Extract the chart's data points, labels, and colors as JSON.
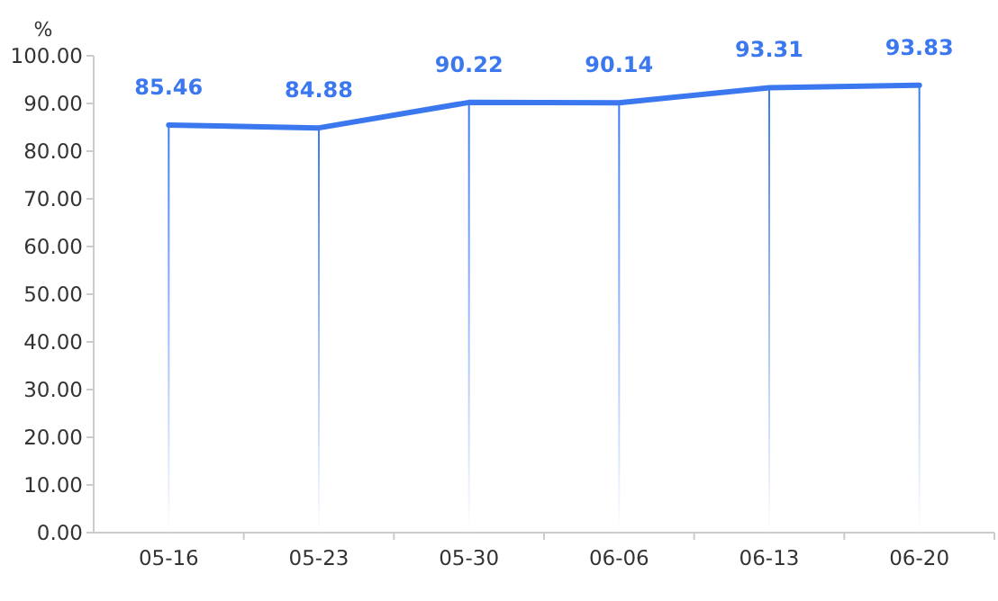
{
  "chart_data": {
    "type": "line",
    "ylabel": "%",
    "categories": [
      "05-16",
      "05-23",
      "05-30",
      "06-06",
      "06-13",
      "06-20"
    ],
    "series": [
      {
        "type": "bar",
        "color": "#3b78f0",
        "values": [
          85.46,
          84.88,
          90.22,
          90.14,
          93.31,
          93.83
        ]
      },
      {
        "color": "#3b78f0",
        "values": [
          85.46,
          84.88,
          90.22,
          90.14,
          93.31,
          93.83
        ],
        "value_labels": [
          "85.46",
          "84.88",
          "90.22",
          "90.14",
          "93.31",
          "93.83"
        ]
      }
    ],
    "ylim": [
      0,
      100
    ],
    "yticks": [
      {
        "value": 0,
        "label": "0.00"
      },
      {
        "value": 10,
        "label": "10.00"
      },
      {
        "value": 20,
        "label": "20.00"
      },
      {
        "value": 30,
        "label": "30.00"
      },
      {
        "value": 40,
        "label": "40.00"
      },
      {
        "value": 50,
        "label": "50.00"
      },
      {
        "value": 60,
        "label": "60.00"
      },
      {
        "value": 70,
        "label": "70.00"
      },
      {
        "value": 80,
        "label": "80.00"
      },
      {
        "value": 90,
        "label": "90.00"
      },
      {
        "value": 100,
        "label": "100.00"
      }
    ],
    "marker": "none",
    "line_style": "solid"
  }
}
